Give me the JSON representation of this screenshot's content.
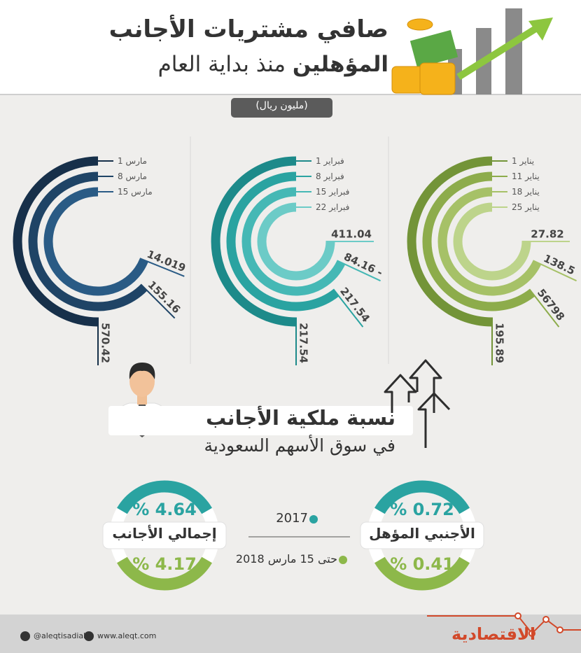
{
  "header": {
    "title": "صافي مشتريات الأجانب",
    "subtitle_bold": "المؤهلين",
    "subtitle_rest": "منذ بداية العام",
    "unit": "(مليون ريال)"
  },
  "sections": [
    {
      "items": [
        {
          "date": "1 مارس",
          "value": "570.42"
        },
        {
          "date": "8 مارس",
          "value": "155.16"
        },
        {
          "date": "15 مارس",
          "value": "14.019"
        }
      ]
    },
    {
      "items": [
        {
          "date": "1 فبراير",
          "value": "217.54"
        },
        {
          "date": "8 فبراير",
          "value": "217.54"
        },
        {
          "date": "15 فبراير",
          "value": "84.16 -"
        },
        {
          "date": "22 فبراير",
          "value": "411.04"
        }
      ]
    },
    {
      "items": [
        {
          "date": "1 يناير",
          "value": "195.89"
        },
        {
          "date": "11 يناير",
          "value": "56798"
        },
        {
          "date": "18 يناير",
          "value": "138.5"
        },
        {
          "date": "25 يناير",
          "value": "27.82"
        }
      ]
    }
  ],
  "ownership": {
    "title": "نسبة ملكية الأجانب",
    "subtitle": "في سوق الأسهم السعودية",
    "legend": {
      "first": "2017",
      "second": "حتى 15 مارس 2018"
    },
    "total": {
      "label": "إجمالي الأجانب",
      "first": "% 4.64",
      "second": "% 4.17"
    },
    "qualified": {
      "label": "الأجنبي المؤهل",
      "first": "% 0.72",
      "second": "% 0.41"
    }
  },
  "footer": {
    "twitter": "@aleqtisadiah",
    "website": "www.aleqt.com",
    "logo": "الاقتصادية"
  }
}
